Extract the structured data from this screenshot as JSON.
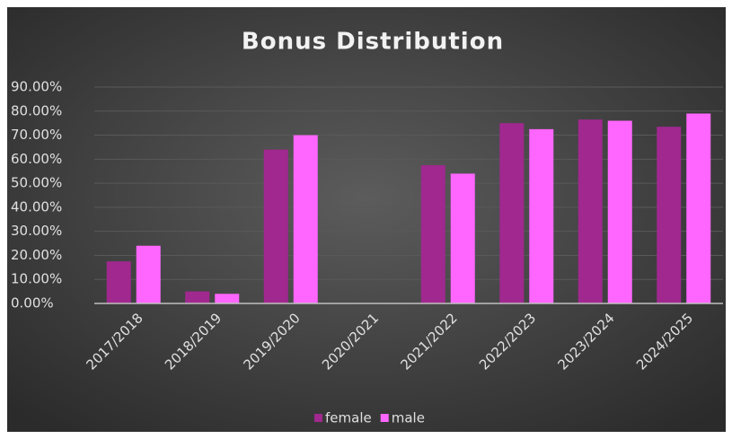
{
  "chart_data": {
    "type": "bar",
    "title": "Bonus Distribution",
    "categories": [
      "2017/2018",
      "2018/2019",
      "2019/2020",
      "2020/2021",
      "2021/2022",
      "2022/2023",
      "2023/2024",
      "2024/2025"
    ],
    "series": [
      {
        "name": "female",
        "color": "#a0288f",
        "values": [
          17.5,
          5,
          64,
          0,
          57.5,
          75,
          76.5,
          73.5
        ]
      },
      {
        "name": "male",
        "color": "#ff66ff",
        "values": [
          24,
          4,
          70,
          0,
          54,
          72.5,
          76,
          79
        ]
      }
    ],
    "ylim": [
      0,
      90
    ],
    "yticks": [
      {
        "value": 0,
        "label": "0.00%"
      },
      {
        "value": 10,
        "label": "10.00%"
      },
      {
        "value": 20,
        "label": "20.00%"
      },
      {
        "value": 30,
        "label": "30.00%"
      },
      {
        "value": 40,
        "label": "40.00%"
      },
      {
        "value": 50,
        "label": "50.00%"
      },
      {
        "value": 60,
        "label": "60.00%"
      },
      {
        "value": 70,
        "label": "70.00%"
      },
      {
        "value": 80,
        "label": "80.00%"
      },
      {
        "value": 90,
        "label": "90.00%"
      }
    ],
    "grid": true,
    "legend": "bottom"
  }
}
